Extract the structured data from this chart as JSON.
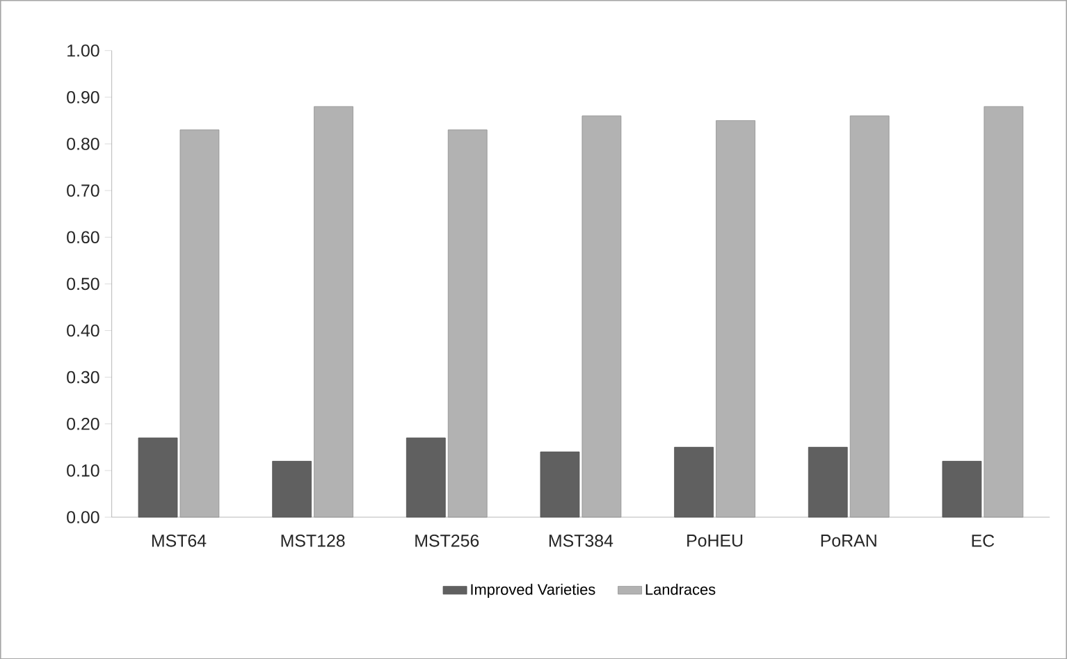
{
  "chart_data": {
    "type": "bar",
    "categories": [
      "MST64",
      "MST128",
      "MST256",
      "MST384",
      "PoHEU",
      "PoRAN",
      "EC"
    ],
    "series": [
      {
        "name": "Improved Varieties",
        "color": "#606060",
        "values": [
          0.17,
          0.12,
          0.17,
          0.14,
          0.15,
          0.15,
          0.12
        ]
      },
      {
        "name": "Landraces",
        "color": "#b2b2b2",
        "values": [
          0.83,
          0.88,
          0.83,
          0.86,
          0.85,
          0.86,
          0.88
        ]
      }
    ],
    "ylim": [
      0,
      1.0
    ],
    "yticks": [
      {
        "value": 0,
        "label": "0.00"
      },
      {
        "value": 0.1,
        "label": "0.10"
      },
      {
        "value": 0.2,
        "label": "0.20"
      },
      {
        "value": 0.3,
        "label": "0.30"
      },
      {
        "value": 0.4,
        "label": "0.40"
      },
      {
        "value": 0.5,
        "label": "0.50"
      },
      {
        "value": 0.6,
        "label": "0.60"
      },
      {
        "value": 0.7,
        "label": "0.70"
      },
      {
        "value": 0.8,
        "label": "0.80"
      },
      {
        "value": 0.9,
        "label": "0.90"
      },
      {
        "value": 1.0,
        "label": "1.00"
      }
    ],
    "grid": false,
    "legend": "bottom"
  }
}
